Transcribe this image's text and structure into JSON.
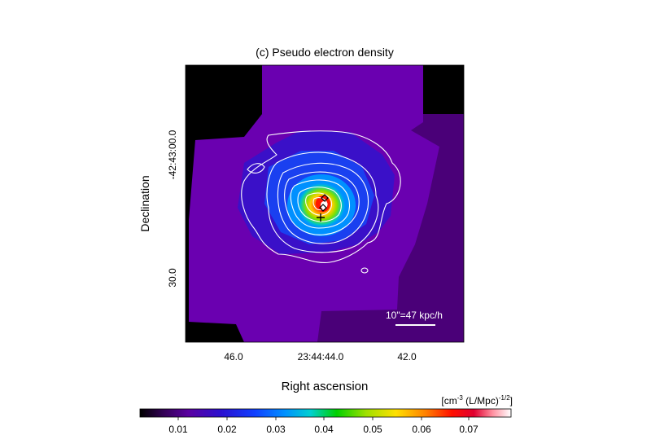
{
  "figure": {
    "title": "(c) Pseudo electron density",
    "xlabel": "Right ascension",
    "ylabel": "Declination",
    "xticks": [
      "46.0",
      "23:44:44.0",
      "42.0"
    ],
    "yticks": [
      "-42:43:00.0",
      "30.0"
    ],
    "scale_bar": "10\"=47 kpc/h",
    "colorbar": {
      "units_main": "[cm",
      "units_sup1": "-3",
      "units_mid": " (L/Mpc)",
      "units_sup2": "-1/2",
      "units_end": "]",
      "ticks": [
        "0.01",
        "0.02",
        "0.03",
        "0.04",
        "0.05",
        "0.06",
        "0.07"
      ]
    },
    "colors": {
      "background": "#000000",
      "outer_region": "#6a00b0",
      "faint_region": "#4a0078",
      "contour": "#ffffff"
    }
  },
  "chart_data": {
    "type": "heatmap",
    "title": "(c) Pseudo electron density",
    "xlabel": "Right ascension",
    "ylabel": "Declination",
    "x_tick_labels": [
      "46.0",
      "23:44:44.0",
      "42.0"
    ],
    "y_tick_labels": [
      "-42:43:00.0",
      "30.0"
    ],
    "colorbar_range": [
      0.0,
      0.08
    ],
    "colorbar_ticks": [
      0.01,
      0.02,
      0.03,
      0.04,
      0.05,
      0.06,
      0.07
    ],
    "colorbar_label": "[cm-3 (L/Mpc)-1/2]",
    "peak_value": 0.075,
    "markers": [
      "cross",
      "diamond",
      "diamond"
    ]
  }
}
